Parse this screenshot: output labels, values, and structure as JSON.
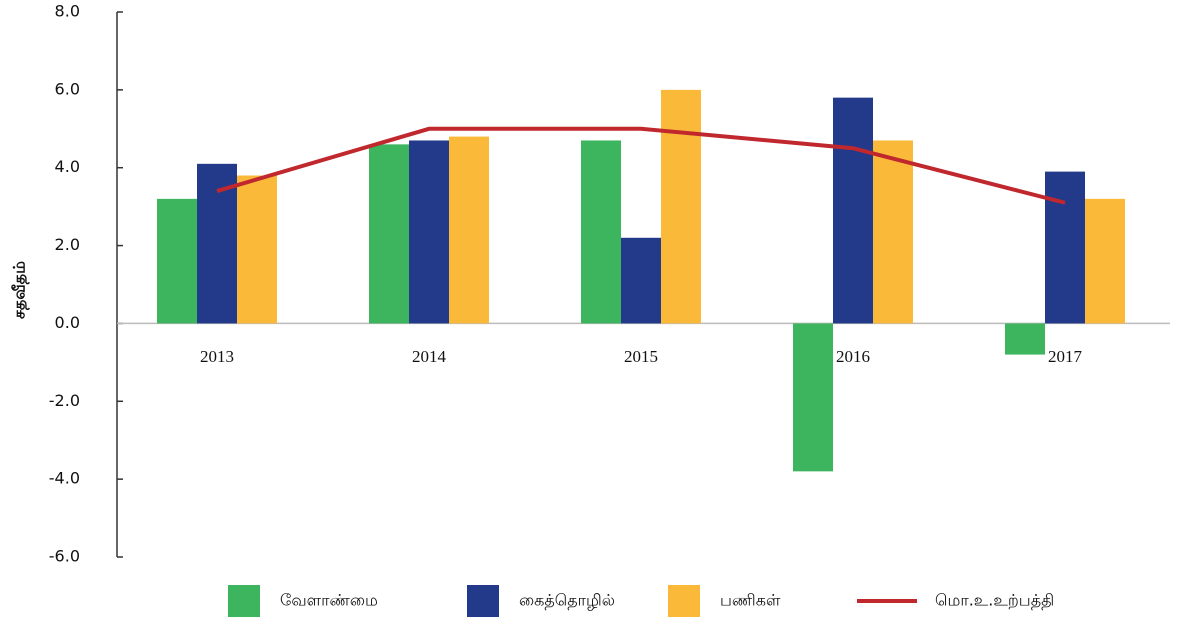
{
  "chart_data": {
    "type": "bar",
    "y_label": "சதவீதம்",
    "categories": [
      "2013",
      "2014",
      "2015",
      "2016",
      "2017"
    ],
    "series": [
      {
        "name": "வேளாண்மை",
        "color": "#3cb55e",
        "values": [
          3.2,
          4.6,
          4.7,
          -3.8,
          -0.8
        ]
      },
      {
        "name": "கைத்தொழில்",
        "color": "#233a8a",
        "values": [
          4.1,
          4.7,
          2.2,
          5.8,
          3.9
        ]
      },
      {
        "name": "பணிகள்",
        "color": "#fbb93a",
        "values": [
          3.8,
          4.8,
          6.0,
          4.7,
          3.2
        ]
      },
      {
        "name": "மொ.உ.உற்பத்தி",
        "color": "#c0282e",
        "type": "line",
        "values": [
          3.4,
          5.0,
          5.0,
          4.5,
          3.1
        ]
      }
    ],
    "ylim": [
      -6,
      8
    ],
    "yticks": [
      {
        "value": -6,
        "label": "-6.0"
      },
      {
        "value": -4,
        "label": "-4.0"
      },
      {
        "value": -2,
        "label": "-2.0"
      },
      {
        "value": 0,
        "label": "0.0"
      },
      {
        "value": 2,
        "label": "2.0"
      },
      {
        "value": 4,
        "label": "4.0"
      },
      {
        "value": 6,
        "label": "6.0"
      },
      {
        "value": 8,
        "label": "8.0"
      }
    ]
  }
}
